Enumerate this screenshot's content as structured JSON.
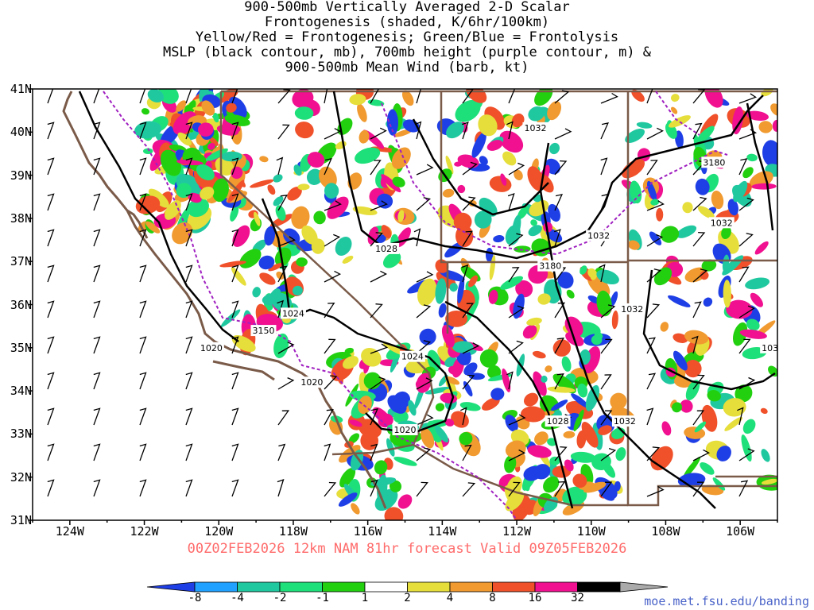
{
  "title_lines": [
    "900-500mb Vertically Averaged 2-D Scalar",
    "Frontogenesis (shaded, K/6hr/100km)",
    "Yellow/Red = Frontogenesis;  Green/Blue = Frontolysis",
    "MSLP (black contour, mb), 700mb height (purple contour, m) &",
    "900-500mb Mean Wind (barb, kt)"
  ],
  "valid_line": "00Z02FEB2026 12km NAM 81hr forecast Valid 09Z05FEB2026",
  "credit": "moe.met.fsu.edu/banding",
  "lat_labels": [
    "41N",
    "40N",
    "39N",
    "38N",
    "37N",
    "36N",
    "35N",
    "34N",
    "33N",
    "32N",
    "31N"
  ],
  "lon_labels": [
    "124W",
    "122W",
    "120W",
    "118W",
    "116W",
    "114W",
    "112W",
    "110W",
    "108W",
    "106W"
  ],
  "isobar_labels": [
    {
      "text": "1032",
      "lon": -111.5,
      "lat": 40.1
    },
    {
      "text": "3180",
      "lon": -106.7,
      "lat": 39.3
    },
    {
      "text": "1028",
      "lon": -115.5,
      "lat": 37.3
    },
    {
      "text": "1032",
      "lon": -109.8,
      "lat": 37.6
    },
    {
      "text": "1032",
      "lon": -106.5,
      "lat": 37.9
    },
    {
      "text": "3180",
      "lon": -111.1,
      "lat": 36.9
    },
    {
      "text": "1024",
      "lon": -118.0,
      "lat": 35.8
    },
    {
      "text": "3150",
      "lon": -118.8,
      "lat": 35.4
    },
    {
      "text": "1032",
      "lon": -108.9,
      "lat": 35.9
    },
    {
      "text": "1020",
      "lon": -120.2,
      "lat": 35.0
    },
    {
      "text": "1024",
      "lon": -114.8,
      "lat": 34.8
    },
    {
      "text": "103",
      "lon": -105.2,
      "lat": 35.0
    },
    {
      "text": "1020",
      "lon": -117.5,
      "lat": 34.2
    },
    {
      "text": "1028",
      "lon": -110.9,
      "lat": 33.3
    },
    {
      "text": "1032",
      "lon": -109.1,
      "lat": 33.3
    },
    {
      "text": "1020",
      "lon": -115.0,
      "lat": 33.1
    }
  ],
  "colorbar": {
    "labels": [
      "-8",
      "-4",
      "-2",
      "-1",
      "1",
      "2",
      "4",
      "8",
      "16",
      "32"
    ],
    "colors": [
      "#1f3fe6",
      "#20a0ff",
      "#20c8a0",
      "#1ee07a",
      "#22d010",
      "#ffffff",
      "#e6de3a",
      "#f09a30",
      "#f0502a",
      "#f01090",
      "#000000",
      "#aaaaaa"
    ]
  },
  "map_extent": {
    "lon_min": -125,
    "lon_max": -105,
    "lat_min": 31,
    "lat_max": 41
  }
}
